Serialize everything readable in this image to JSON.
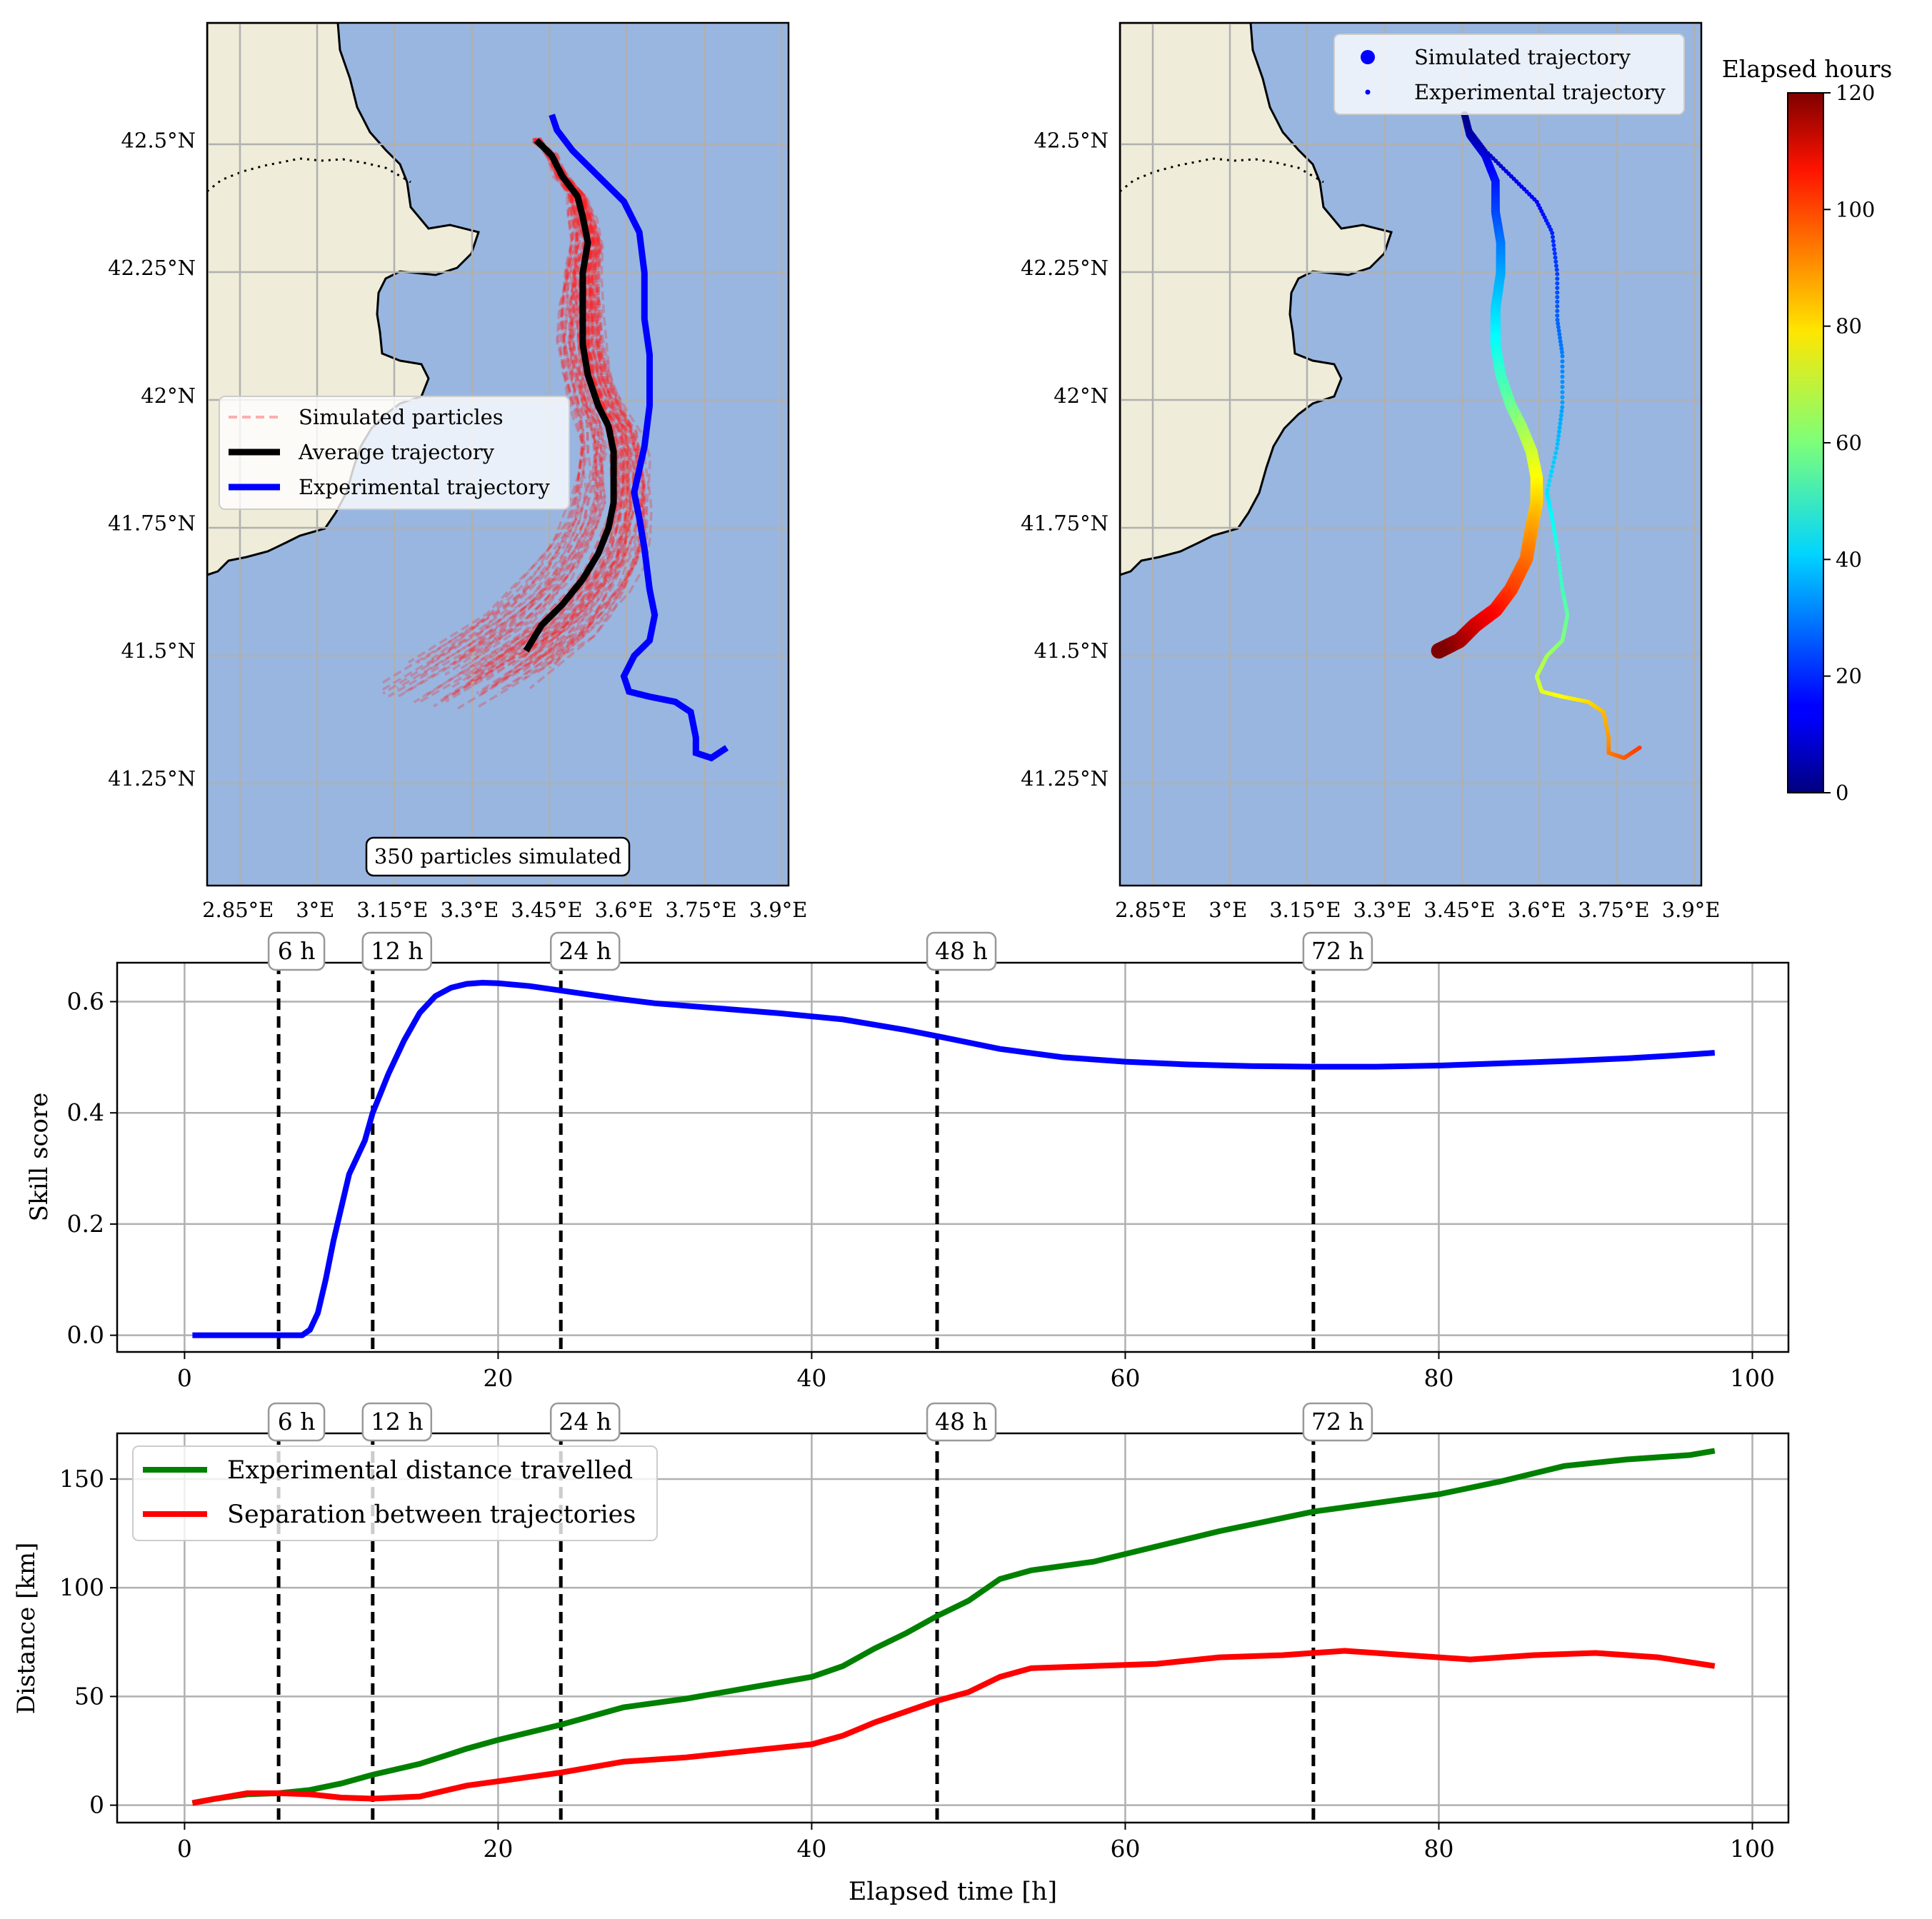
{
  "chart_data": [
    {
      "type": "scatter",
      "panel": "map-particles",
      "xticks": [
        "2.85°E",
        "3°E",
        "3.15°E",
        "3.3°E",
        "3.45°E",
        "3.6°E",
        "3.75°E",
        "3.9°E"
      ],
      "yticks": [
        "42.5°N",
        "42.25°N",
        "42°N",
        "41.75°N",
        "41.5°N",
        "41.25°N"
      ],
      "xlim": [
        2.79,
        3.92
      ],
      "ylim": [
        41.04,
        42.73
      ],
      "grid": true,
      "legend": {
        "placement": "center-left",
        "entries": [
          "Simulated particles",
          "Average trajectory",
          "Experimental trajectory"
        ]
      },
      "annotation": "350 particles simulated",
      "colors": {
        "land": "#efecd9",
        "sea": "#98b6e0",
        "particles": "#ff2020",
        "average": "#000000",
        "experimental": "#0000ff",
        "grid": "#b0b0b0"
      },
      "series": [
        {
          "name": "Average trajectory",
          "lon": [
            3.43,
            3.46,
            3.48,
            3.51,
            3.52,
            3.53,
            3.52,
            3.52,
            3.52,
            3.53,
            3.55,
            3.57,
            3.58,
            3.58,
            3.58,
            3.57,
            3.55,
            3.52,
            3.48,
            3.44,
            3.41
          ],
          "lat": [
            42.5,
            42.47,
            42.43,
            42.39,
            42.35,
            42.3,
            42.24,
            42.17,
            42.1,
            42.04,
            41.98,
            41.94,
            41.89,
            41.84,
            41.79,
            41.74,
            41.69,
            41.64,
            41.59,
            41.55,
            41.5
          ]
        },
        {
          "name": "Experimental trajectory",
          "lon": [
            3.46,
            3.47,
            3.5,
            3.55,
            3.6,
            3.63,
            3.64,
            3.64,
            3.65,
            3.65,
            3.64,
            3.62,
            3.63,
            3.64,
            3.65,
            3.66,
            3.65,
            3.62,
            3.6,
            3.61,
            3.65,
            3.7,
            3.73,
            3.74,
            3.74,
            3.77,
            3.8
          ],
          "lat": [
            42.55,
            42.52,
            42.48,
            42.43,
            42.38,
            42.32,
            42.24,
            42.15,
            42.08,
            41.98,
            41.9,
            41.81,
            41.76,
            41.7,
            41.62,
            41.57,
            41.52,
            41.49,
            41.45,
            41.42,
            41.41,
            41.4,
            41.38,
            41.33,
            41.3,
            41.29,
            41.31
          ]
        }
      ]
    },
    {
      "type": "scatter",
      "panel": "map-colored",
      "xticks": [
        "2.85°E",
        "3°E",
        "3.15°E",
        "3.3°E",
        "3.45°E",
        "3.6°E",
        "3.75°E",
        "3.9°E"
      ],
      "yticks": [
        "42.5°N",
        "42.25°N",
        "42°N",
        "41.75°N",
        "41.5°N",
        "41.25°N"
      ],
      "xlim": [
        2.79,
        3.92
      ],
      "ylim": [
        41.04,
        42.73
      ],
      "grid": true,
      "legend": {
        "placement": "top-right",
        "entries": [
          "Simulated trajectory",
          "Experimental trajectory"
        ]
      },
      "colorbar": {
        "label": "Elapsed hours",
        "range": [
          0,
          120
        ],
        "ticks": [
          "0",
          "20",
          "40",
          "60",
          "80",
          "100",
          "120"
        ],
        "cmap": "jet"
      },
      "series": [
        {
          "name": "Simulated trajectory",
          "hours_range": [
            0,
            120
          ],
          "lon": [
            3.46,
            3.47,
            3.5,
            3.52,
            3.52,
            3.53,
            3.53,
            3.52,
            3.52,
            3.53,
            3.55,
            3.57,
            3.59,
            3.6,
            3.6,
            3.59,
            3.58,
            3.55,
            3.52,
            3.48,
            3.45,
            3.41
          ],
          "lat": [
            42.55,
            42.51,
            42.47,
            42.42,
            42.36,
            42.3,
            42.24,
            42.17,
            42.1,
            42.04,
            41.98,
            41.94,
            41.89,
            41.84,
            41.79,
            41.74,
            41.68,
            41.62,
            41.58,
            41.55,
            41.52,
            41.5
          ]
        },
        {
          "name": "Experimental trajectory",
          "hours_range": [
            0,
            98
          ],
          "lon": [
            3.46,
            3.47,
            3.5,
            3.55,
            3.6,
            3.63,
            3.64,
            3.64,
            3.65,
            3.65,
            3.64,
            3.62,
            3.63,
            3.64,
            3.65,
            3.66,
            3.65,
            3.62,
            3.6,
            3.61,
            3.65,
            3.7,
            3.73,
            3.74,
            3.74,
            3.77,
            3.8
          ],
          "lat": [
            42.55,
            42.52,
            42.48,
            42.43,
            42.38,
            42.32,
            42.24,
            42.15,
            42.08,
            41.98,
            41.9,
            41.81,
            41.76,
            41.7,
            41.62,
            41.57,
            41.52,
            41.49,
            41.45,
            41.42,
            41.41,
            41.4,
            41.38,
            41.33,
            41.3,
            41.29,
            41.31
          ]
        }
      ]
    },
    {
      "type": "line",
      "panel": "skill",
      "ylabel": "Skill score",
      "xlim": [
        -4.3,
        102.3
      ],
      "ylim": [
        -0.03,
        0.67
      ],
      "xticks": [
        0,
        20,
        40,
        60,
        80,
        100
      ],
      "yticks": [
        "0.0",
        "0.2",
        "0.4",
        "0.6"
      ],
      "grid": true,
      "vlines": [
        {
          "x": 6,
          "label": "6 h"
        },
        {
          "x": 12,
          "label": "12 h"
        },
        {
          "x": 24,
          "label": "24 h"
        },
        {
          "x": 48,
          "label": "48 h"
        },
        {
          "x": 72,
          "label": "72 h"
        }
      ],
      "series": [
        {
          "name": "",
          "color": "#0000ff",
          "x": [
            0.5,
            7.5,
            8,
            8.5,
            9,
            9.5,
            10,
            10.5,
            11,
            11.5,
            12,
            13,
            14,
            15,
            16,
            17,
            18,
            19,
            20,
            22,
            24,
            26,
            28,
            30,
            34,
            38,
            42,
            46,
            48,
            52,
            56,
            60,
            64,
            68,
            72,
            76,
            80,
            84,
            88,
            92,
            95,
            97.6
          ],
          "y": [
            0,
            0,
            0.01,
            0.04,
            0.1,
            0.17,
            0.23,
            0.29,
            0.32,
            0.35,
            0.4,
            0.47,
            0.53,
            0.58,
            0.61,
            0.625,
            0.632,
            0.634,
            0.633,
            0.628,
            0.62,
            0.612,
            0.604,
            0.597,
            0.588,
            0.579,
            0.568,
            0.549,
            0.538,
            0.515,
            0.5,
            0.492,
            0.487,
            0.484,
            0.483,
            0.483,
            0.485,
            0.489,
            0.493,
            0.498,
            0.503,
            0.508
          ]
        }
      ]
    },
    {
      "type": "line",
      "panel": "distance",
      "xlabel": "Elapsed time [h]",
      "ylabel": "Distance [km]",
      "xlim": [
        -4.3,
        102.3
      ],
      "ylim": [
        -8,
        171
      ],
      "xticks": [
        0,
        20,
        40,
        60,
        80,
        100
      ],
      "yticks": [
        "0",
        "50",
        "100",
        "150"
      ],
      "grid": true,
      "legend": {
        "placement": "top-left",
        "entries": [
          "Experimental distance travelled",
          "Separation between trajectories"
        ]
      },
      "vlines": [
        {
          "x": 6,
          "label": "6 h"
        },
        {
          "x": 12,
          "label": "12 h"
        },
        {
          "x": 24,
          "label": "24 h"
        },
        {
          "x": 48,
          "label": "48 h"
        },
        {
          "x": 72,
          "label": "72 h"
        }
      ],
      "series": [
        {
          "name": "Experimental distance travelled",
          "color": "#008000",
          "x": [
            0.5,
            2,
            4,
            6,
            8,
            10,
            12,
            15,
            18,
            20,
            24,
            28,
            32,
            36,
            40,
            42,
            44,
            46,
            48,
            50,
            52,
            54,
            58,
            62,
            66,
            70,
            72,
            76,
            80,
            84,
            88,
            92,
            96,
            97.6
          ],
          "y": [
            1,
            3,
            5,
            5.5,
            7,
            10,
            14,
            19,
            26,
            30,
            37,
            45,
            49,
            54,
            59,
            64,
            72,
            79,
            87,
            94,
            104,
            108,
            112,
            119,
            126,
            132,
            135,
            139,
            143,
            149,
            156,
            159,
            161,
            163
          ]
        },
        {
          "name": "Separation between trajectories",
          "color": "#ff0000",
          "x": [
            0.5,
            2,
            4,
            6,
            8,
            10,
            12,
            15,
            18,
            20,
            24,
            28,
            32,
            36,
            40,
            42,
            44,
            46,
            48,
            50,
            52,
            54,
            58,
            62,
            66,
            70,
            72,
            74,
            78,
            82,
            86,
            90,
            94,
            97.6
          ],
          "y": [
            1,
            3,
            5.5,
            5.5,
            5,
            3.5,
            3,
            4,
            9,
            11,
            15,
            20,
            22,
            25,
            28,
            32,
            38,
            43,
            48,
            52,
            59,
            63,
            64,
            65,
            68,
            69,
            70,
            71,
            69,
            67,
            69,
            70,
            68,
            64
          ]
        }
      ]
    }
  ],
  "labels": {
    "panel1_annotation": "350 particles simulated",
    "colorbar_title": "Elapsed hours"
  }
}
